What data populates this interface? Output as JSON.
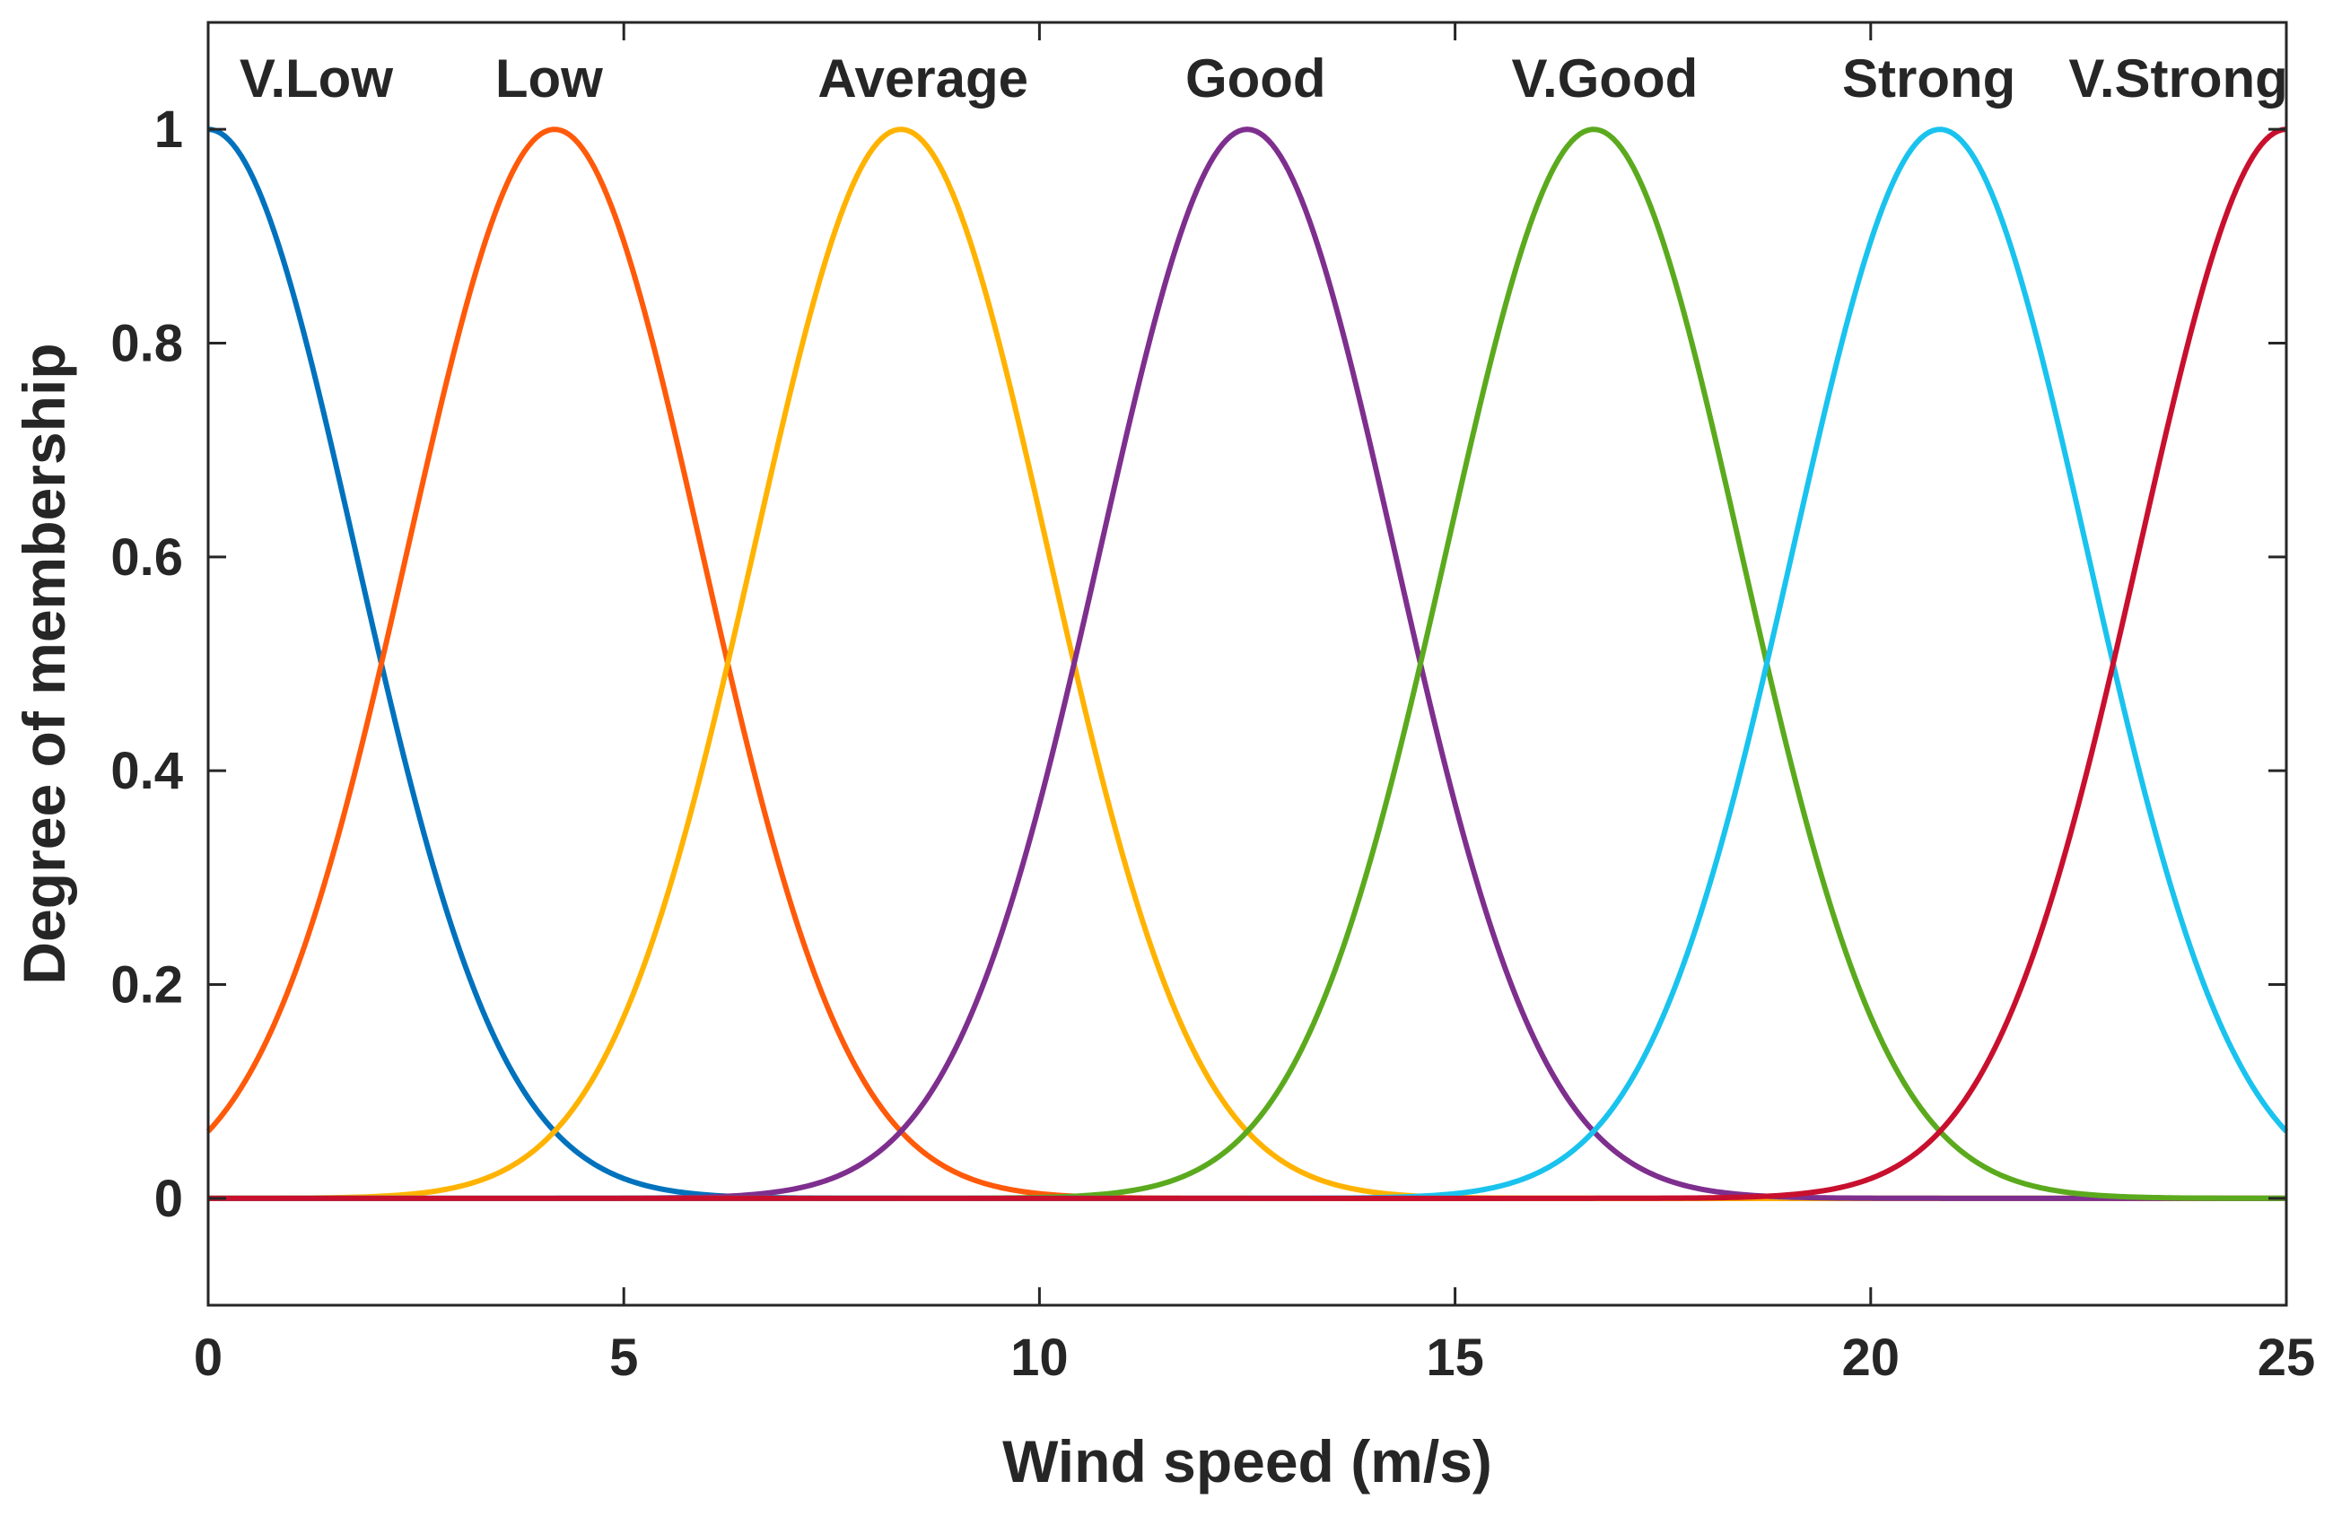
{
  "chart_data": {
    "type": "line",
    "title": "",
    "xlabel": "Wind speed (m/s)",
    "ylabel": "Degree of membership",
    "xlim": [
      0,
      25
    ],
    "ylim": [
      -0.1,
      1.1
    ],
    "xticks": [
      0,
      5,
      10,
      15,
      20,
      25
    ],
    "yticks": [
      0,
      0.2,
      0.4,
      0.6,
      0.8,
      1
    ],
    "xtick_labels": [
      "0",
      "5",
      "10",
      "15",
      "20",
      "25"
    ],
    "ytick_labels": [
      "0",
      "0.2",
      "0.4",
      "0.6",
      "0.8",
      "1"
    ],
    "grid": false,
    "legend": "none",
    "membership_function": "gaussian",
    "sigma": 1.77,
    "series": [
      {
        "name": "V.Low",
        "center": 0.0,
        "color": "#0072BD"
      },
      {
        "name": "Low",
        "center": 4.167,
        "color": "#FF5A0A"
      },
      {
        "name": "Average",
        "center": 8.333,
        "color": "#FFB300"
      },
      {
        "name": "Good",
        "center": 12.5,
        "color": "#7E2F8E"
      },
      {
        "name": "V.Good",
        "center": 16.667,
        "color": "#5BAA1E"
      },
      {
        "name": "Strong",
        "center": 20.833,
        "color": "#19C3EE"
      },
      {
        "name": "V.Strong",
        "center": 25.0,
        "color": "#C8102E"
      }
    ],
    "annotations": [
      {
        "text": "V.Low",
        "series": "V.Low",
        "x": 1.3
      },
      {
        "text": "Low",
        "series": "Low",
        "x": 4.1
      },
      {
        "text": "Average",
        "series": "Average",
        "x": 8.6
      },
      {
        "text": "Good",
        "series": "Good",
        "x": 12.6
      },
      {
        "text": "V.Good",
        "series": "V.Good",
        "x": 16.8
      },
      {
        "text": "Strong",
        "series": "Strong",
        "x": 20.7
      },
      {
        "text": "V.Strong",
        "series": "V.Strong",
        "x": 23.7
      }
    ]
  }
}
